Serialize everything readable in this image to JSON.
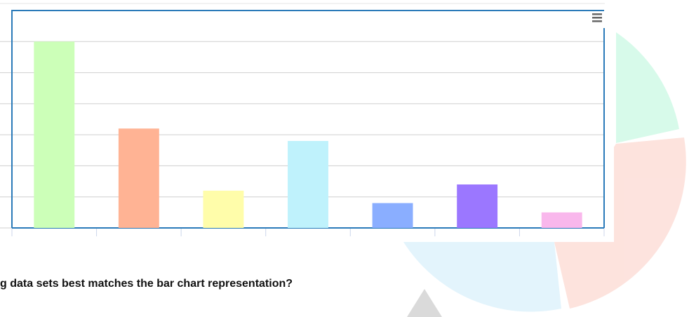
{
  "chart_data": {
    "type": "bar",
    "categories": [
      null,
      null,
      null,
      null,
      null,
      null,
      null
    ],
    "values": [
      6,
      3.2,
      1.2,
      2.8,
      0.8,
      1.4,
      0.5
    ],
    "colors": [
      "#ccffb8",
      "#ffb394",
      "#fffdaa",
      "#bff2fc",
      "#8aaeff",
      "#9b77ff",
      "#f9b7ec"
    ],
    "ylim": [
      0,
      7
    ],
    "yticks": [
      0,
      1,
      2,
      3,
      4,
      5,
      6
    ],
    "grid": true
  },
  "question": "g data sets best matches the bar chart representation?"
}
